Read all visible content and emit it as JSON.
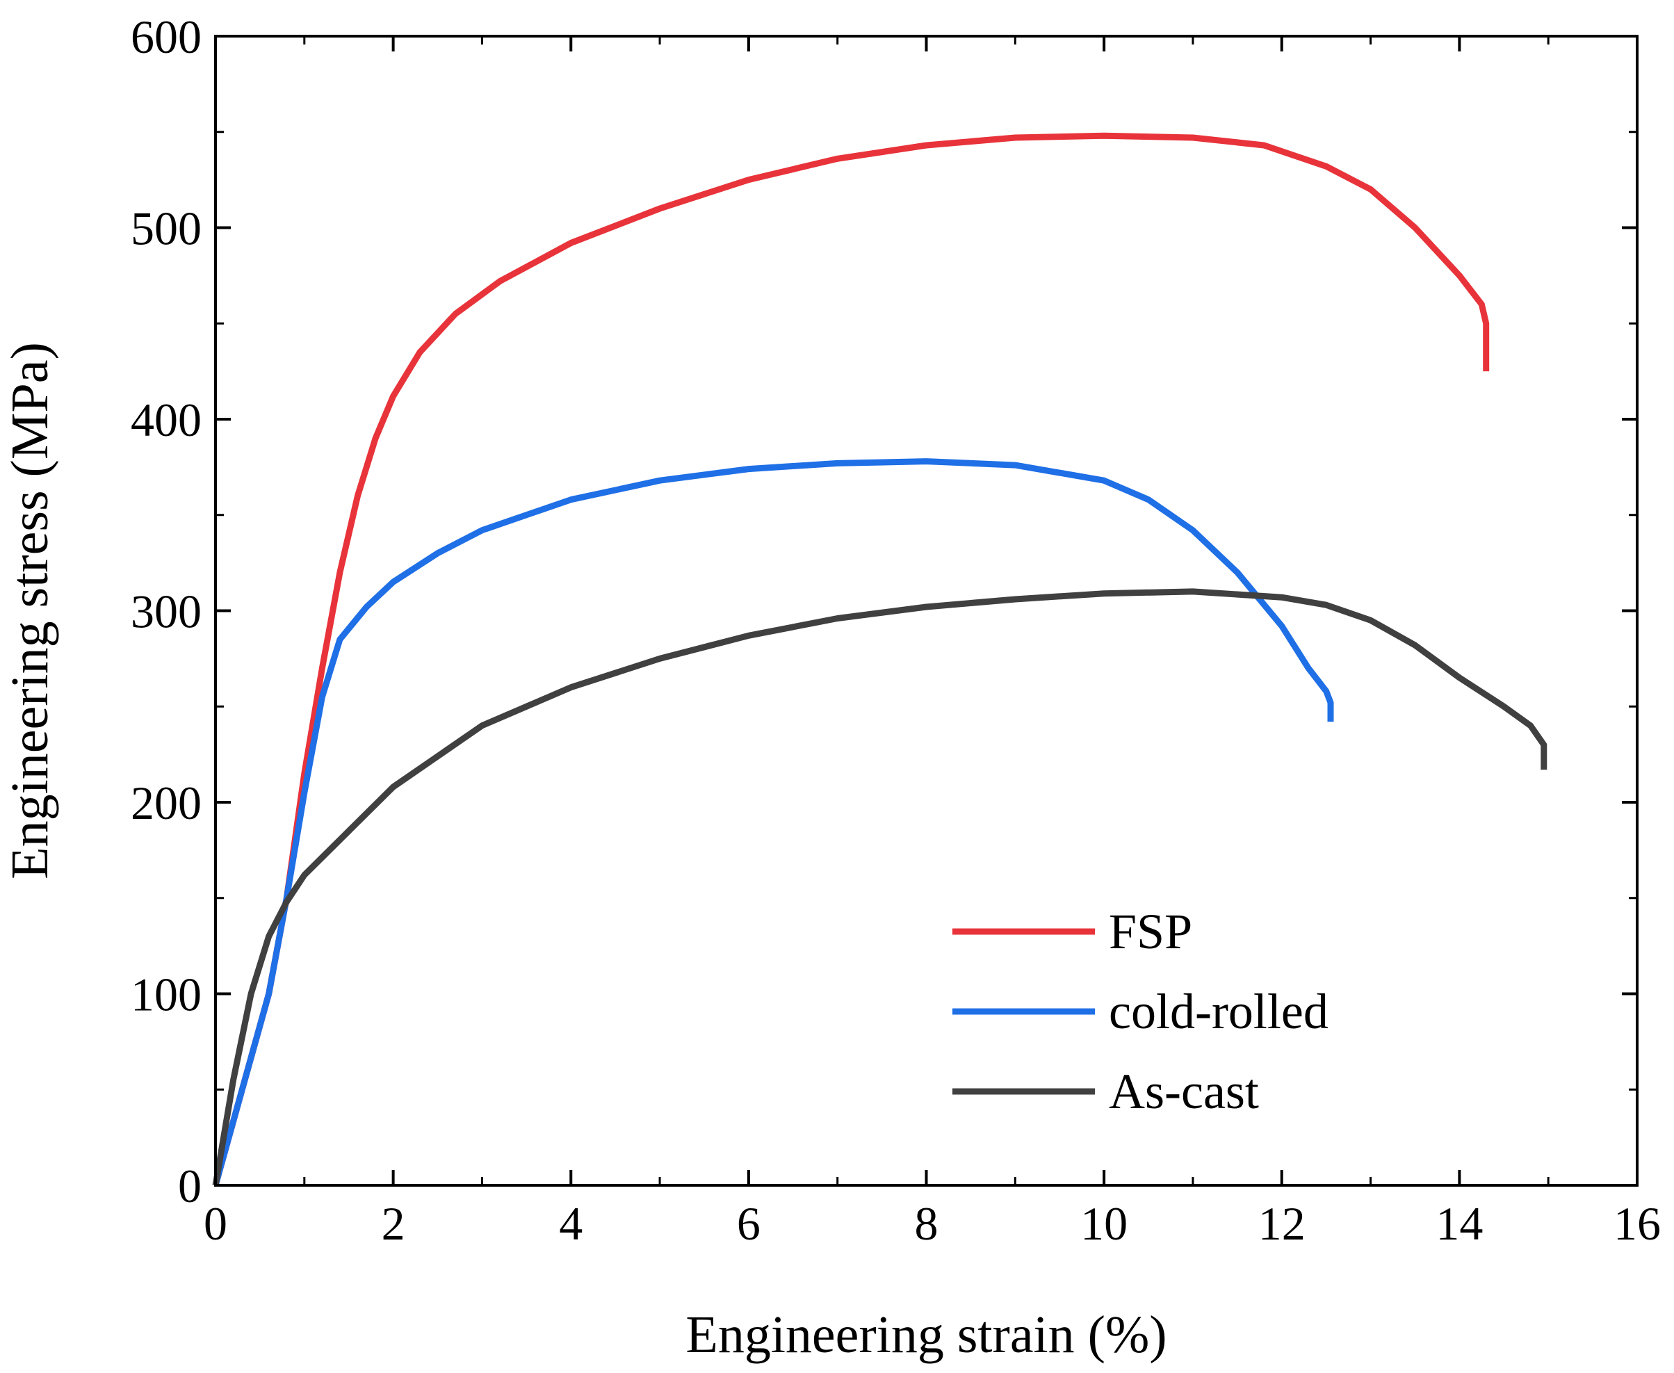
{
  "chart_data": {
    "type": "line",
    "title": "",
    "xlabel": "Engineering strain (%)",
    "ylabel": "Engineering stress (MPa)",
    "xlim": [
      0,
      16
    ],
    "ylim": [
      0,
      600
    ],
    "x_ticks": [
      0,
      2,
      4,
      6,
      8,
      10,
      12,
      14,
      16
    ],
    "y_ticks": [
      0,
      100,
      200,
      300,
      400,
      500,
      600
    ],
    "x_tick_labels": [
      "0",
      "2",
      "4",
      "6",
      "8",
      "10",
      "12",
      "14",
      "16"
    ],
    "y_tick_labels": [
      "0",
      "100",
      "200",
      "300",
      "400",
      "500",
      "600"
    ],
    "grid": false,
    "legend_position": "bottom-right",
    "series": [
      {
        "name": "FSP",
        "color": "#e8333a",
        "x": [
          0,
          0.3,
          0.6,
          0.8,
          1.0,
          1.2,
          1.4,
          1.6,
          1.8,
          2.0,
          2.3,
          2.7,
          3.2,
          4.0,
          5.0,
          6.0,
          7.0,
          8.0,
          9.0,
          10.0,
          11.0,
          11.8,
          12.5,
          13.0,
          13.5,
          14.0,
          14.25,
          14.3,
          14.3
        ],
        "y": [
          0,
          50,
          100,
          150,
          215,
          270,
          320,
          360,
          390,
          412,
          435,
          455,
          472,
          492,
          510,
          525,
          536,
          543,
          547,
          548,
          547,
          543,
          532,
          520,
          500,
          475,
          460,
          450,
          425
        ]
      },
      {
        "name": "cold-rolled",
        "color": "#1f6fe6",
        "x": [
          0,
          0.3,
          0.6,
          0.8,
          1.0,
          1.2,
          1.4,
          1.7,
          2.0,
          2.5,
          3.0,
          4.0,
          5.0,
          6.0,
          7.0,
          8.0,
          9.0,
          10.0,
          10.5,
          11.0,
          11.5,
          12.0,
          12.3,
          12.5,
          12.55,
          12.55
        ],
        "y": [
          0,
          50,
          100,
          150,
          205,
          255,
          285,
          302,
          315,
          330,
          342,
          358,
          368,
          374,
          377,
          378,
          376,
          368,
          358,
          342,
          320,
          292,
          270,
          258,
          252,
          242
        ]
      },
      {
        "name": "As-cast",
        "color": "#404040",
        "x": [
          0,
          0.2,
          0.4,
          0.6,
          0.8,
          1.0,
          1.5,
          2.0,
          3.0,
          4.0,
          5.0,
          6.0,
          7.0,
          8.0,
          9.0,
          10.0,
          11.0,
          12.0,
          12.5,
          13.0,
          13.5,
          14.0,
          14.5,
          14.8,
          14.95,
          14.95
        ],
        "y": [
          0,
          55,
          100,
          130,
          148,
          162,
          185,
          208,
          240,
          260,
          275,
          287,
          296,
          302,
          306,
          309,
          310,
          307,
          303,
          295,
          282,
          265,
          250,
          240,
          230,
          217
        ]
      }
    ]
  }
}
